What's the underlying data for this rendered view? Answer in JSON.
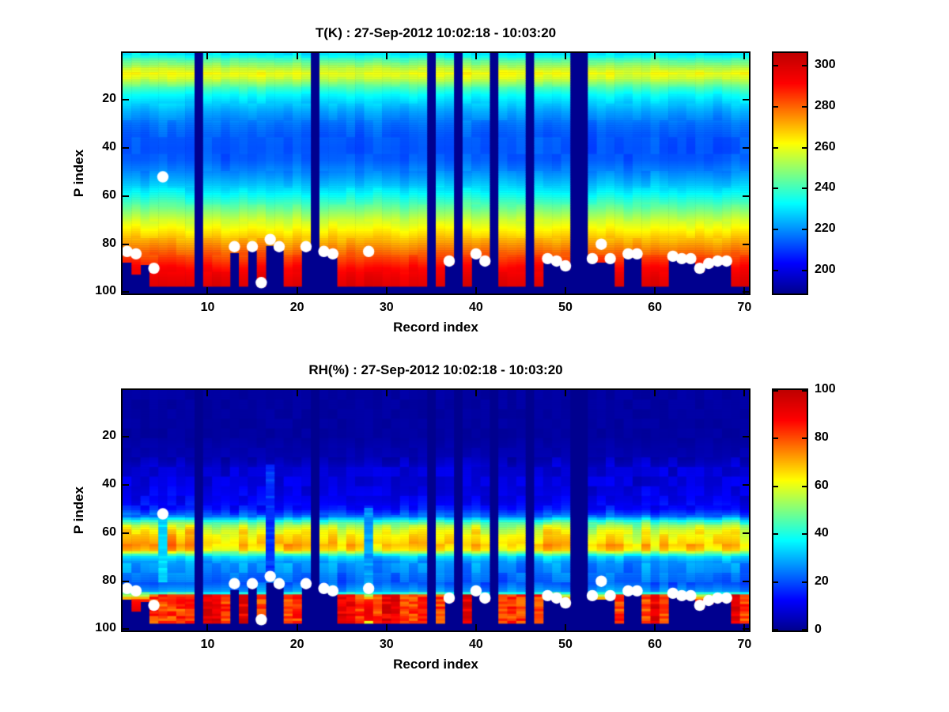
{
  "figure": {
    "background": "#ffffff"
  },
  "colors": {
    "nan_background": "#00008F",
    "dot": "#ffffff",
    "axis": "#000000",
    "text": "#000000"
  },
  "chart_data": [
    {
      "type": "heatmap",
      "title": "T(K) : 27-Sep-2012 10:02:18 - 10:03:20",
      "xlabel": "Record index",
      "ylabel": "P index",
      "units": "K",
      "colormap": "jet",
      "grid": false,
      "x_ticks": [
        10,
        20,
        30,
        40,
        50,
        60,
        70
      ],
      "y_ticks": [
        20,
        40,
        60,
        80,
        100
      ],
      "x_range": [
        0.5,
        70.5
      ],
      "y_range": [
        0.5,
        100.5
      ],
      "y_inverted": true,
      "n_records": 70,
      "n_levels": 100,
      "colorbar_ticks": [
        200,
        220,
        240,
        260,
        280,
        300
      ],
      "color_range": [
        189,
        306
      ],
      "profile_p": [
        1,
        2,
        3,
        5,
        7,
        9,
        11,
        13,
        15,
        18,
        21,
        25,
        30,
        35,
        40,
        45,
        50,
        55,
        60,
        65,
        70,
        74,
        78,
        82,
        86,
        90,
        94,
        100
      ],
      "profile_v": [
        230,
        234,
        240,
        248,
        255,
        261,
        257,
        249,
        241,
        233,
        228,
        222,
        217,
        214,
        213,
        214,
        219,
        226,
        235,
        245,
        256,
        263,
        270,
        277,
        284,
        291,
        296,
        300
      ],
      "missing_records": [
        9,
        22,
        35,
        38,
        42,
        46,
        51,
        52
      ],
      "surface_default": 97,
      "surface_overrides": {
        "1": 87,
        "2": 92,
        "3": 88,
        "13": 83,
        "15": 82,
        "17": 80,
        "18": 82,
        "21": 82,
        "23": 84,
        "24": 85,
        "37": 88,
        "40": 85,
        "41": 88,
        "48": 87,
        "49": 88,
        "50": 90,
        "53": 87,
        "54": 87,
        "55": 87,
        "57": 85,
        "58": 85,
        "62": 86,
        "63": 87,
        "64": 87,
        "65": 91,
        "66": 89,
        "67": 88,
        "68": 88
      },
      "dots": [
        [
          1,
          83
        ],
        [
          2,
          84
        ],
        [
          4,
          90
        ],
        [
          5,
          52
        ],
        [
          13,
          81
        ],
        [
          15,
          81
        ],
        [
          16,
          96
        ],
        [
          17,
          78
        ],
        [
          18,
          81
        ],
        [
          21,
          81
        ],
        [
          23,
          83
        ],
        [
          24,
          84
        ],
        [
          28,
          83
        ],
        [
          37,
          87
        ],
        [
          40,
          84
        ],
        [
          41,
          87
        ],
        [
          48,
          86
        ],
        [
          49,
          87
        ],
        [
          50,
          89
        ],
        [
          53,
          86
        ],
        [
          54,
          80
        ],
        [
          55,
          86
        ],
        [
          57,
          84
        ],
        [
          58,
          84
        ],
        [
          62,
          85
        ],
        [
          63,
          86
        ],
        [
          64,
          86
        ],
        [
          65,
          90
        ],
        [
          66,
          88
        ],
        [
          67,
          87
        ],
        [
          68,
          87
        ]
      ]
    },
    {
      "type": "heatmap",
      "title": "RH(%) : 27-Sep-2012 10:02:18 - 10:03:20",
      "xlabel": "Record index",
      "ylabel": "P index",
      "units": "%",
      "colormap": "jet",
      "grid": false,
      "x_ticks": [
        10,
        20,
        30,
        40,
        50,
        60,
        70
      ],
      "y_ticks": [
        20,
        40,
        60,
        80,
        100
      ],
      "x_range": [
        0.5,
        70.5
      ],
      "y_range": [
        0.5,
        100.5
      ],
      "y_inverted": true,
      "n_records": 70,
      "n_levels": 100,
      "colorbar_ticks": [
        0,
        20,
        40,
        60,
        80,
        100
      ],
      "color_range": [
        0,
        100
      ],
      "profile_p": [
        1,
        20,
        28,
        33,
        40,
        46,
        50,
        53,
        55,
        57,
        59,
        62,
        65,
        67,
        68.5,
        70,
        72,
        75,
        78,
        81,
        84,
        86,
        88,
        92,
        96,
        97,
        100
      ],
      "profile_v": [
        2,
        2,
        4,
        8,
        9,
        11,
        14,
        24,
        42,
        55,
        62,
        66,
        70,
        66,
        48,
        34,
        28,
        26,
        24,
        22,
        28,
        55,
        85,
        92,
        88,
        60,
        10
      ],
      "missing_records": [
        9,
        22,
        35,
        38,
        42,
        46,
        51,
        52
      ],
      "surface_default": 97,
      "surface_overrides": {
        "1": 87,
        "2": 92,
        "3": 88,
        "13": 83,
        "15": 82,
        "17": 80,
        "18": 82,
        "21": 82,
        "23": 84,
        "24": 85,
        "37": 88,
        "40": 85,
        "41": 88,
        "48": 87,
        "49": 88,
        "50": 90,
        "53": 87,
        "54": 87,
        "55": 87,
        "57": 85,
        "58": 85,
        "62": 86,
        "63": 87,
        "64": 87,
        "65": 91,
        "66": 89,
        "67": 88,
        "68": 88
      },
      "wet_records": [
        4,
        5,
        6,
        7,
        8,
        10,
        11,
        12,
        14,
        16,
        19,
        20,
        25,
        26,
        27,
        29,
        30,
        31,
        32,
        33,
        34,
        36,
        39,
        43,
        44,
        45,
        47,
        56,
        59,
        60,
        61,
        69,
        70
      ],
      "strong_wet_records": [
        10,
        11,
        14,
        25,
        26,
        30,
        31,
        39,
        60,
        69
      ],
      "special_columns": [
        {
          "record": 5,
          "p_from": 52,
          "p_to": 80,
          "value": 35
        },
        {
          "record": 17,
          "p_from": 32,
          "p_to": 79,
          "value": 18
        },
        {
          "record": 28,
          "p_from": 50,
          "p_to": 82,
          "value": 28
        }
      ],
      "dots": [
        [
          1,
          83
        ],
        [
          2,
          84
        ],
        [
          4,
          90
        ],
        [
          5,
          52
        ],
        [
          13,
          81
        ],
        [
          15,
          81
        ],
        [
          16,
          96
        ],
        [
          17,
          78
        ],
        [
          18,
          81
        ],
        [
          21,
          81
        ],
        [
          23,
          83
        ],
        [
          24,
          84
        ],
        [
          28,
          83
        ],
        [
          37,
          87
        ],
        [
          40,
          84
        ],
        [
          41,
          87
        ],
        [
          48,
          86
        ],
        [
          49,
          87
        ],
        [
          50,
          89
        ],
        [
          53,
          86
        ],
        [
          54,
          80
        ],
        [
          55,
          86
        ],
        [
          57,
          84
        ],
        [
          58,
          84
        ],
        [
          62,
          85
        ],
        [
          63,
          86
        ],
        [
          64,
          86
        ],
        [
          65,
          90
        ],
        [
          66,
          88
        ],
        [
          67,
          87
        ],
        [
          68,
          87
        ]
      ]
    }
  ]
}
